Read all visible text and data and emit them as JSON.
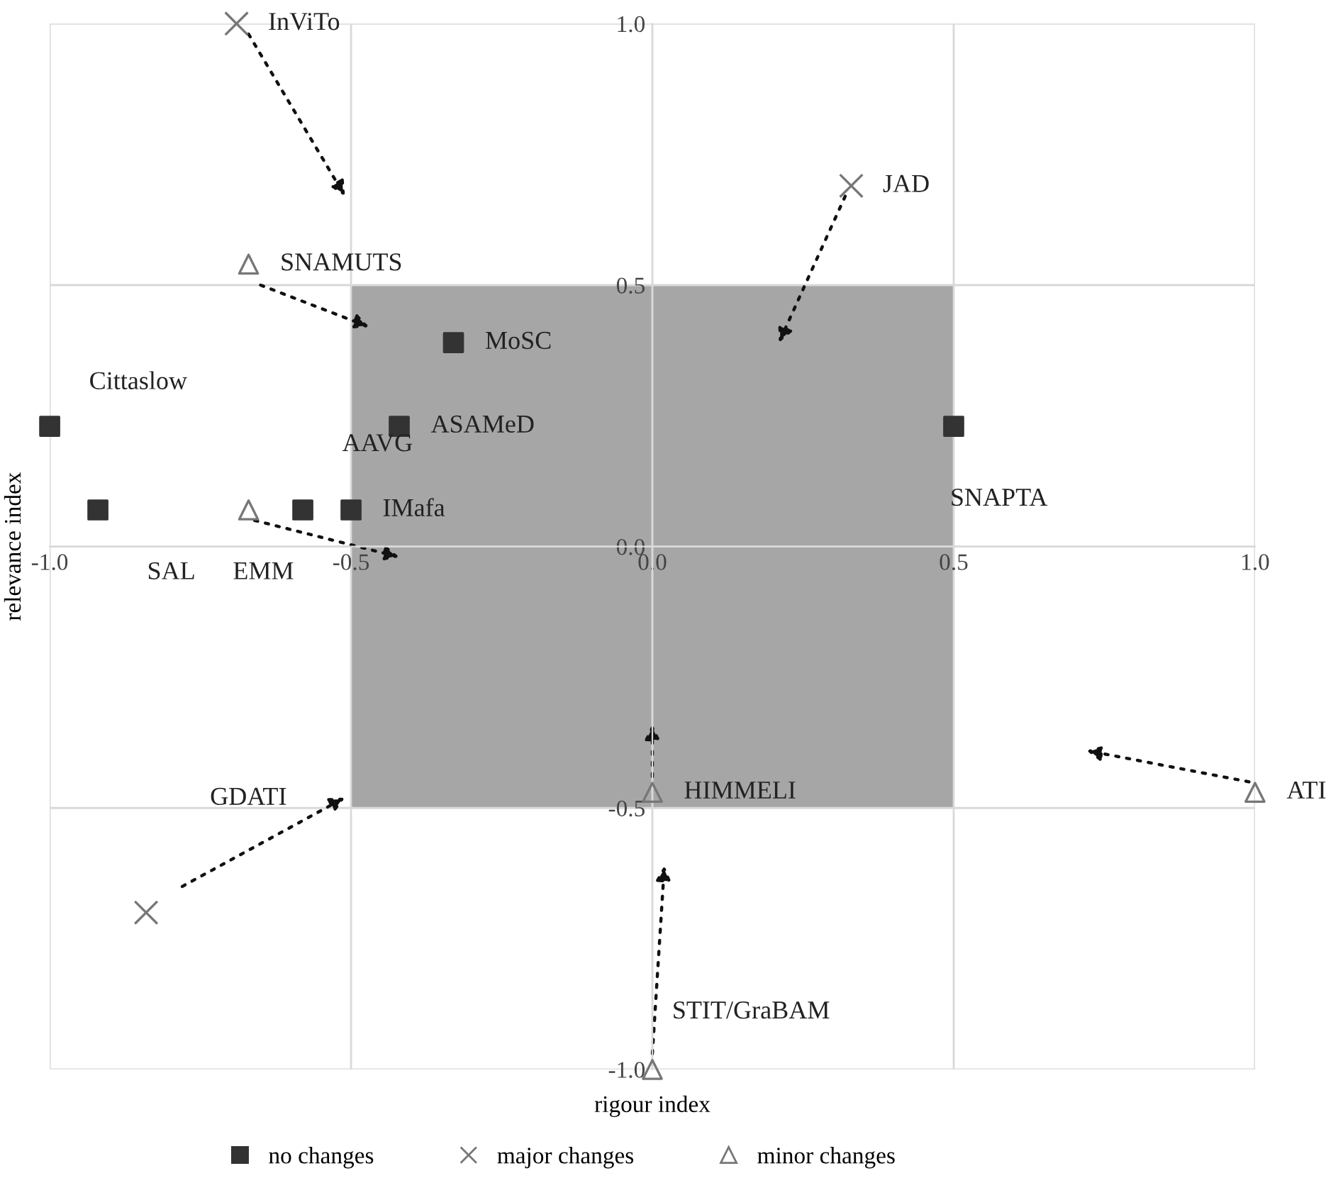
{
  "chart_data": {
    "type": "scatter",
    "xlabel": "rigour index",
    "ylabel": "relevance index",
    "xlim": [
      -1.0,
      1.0
    ],
    "ylim": [
      -1.0,
      1.0
    ],
    "xticks": [
      {
        "value": -1.0,
        "label": "-1.0"
      },
      {
        "value": -0.5,
        "label": "-0.5"
      },
      {
        "value": 0.0,
        "label": "0.0"
      },
      {
        "value": 0.5,
        "label": "0.5"
      },
      {
        "value": 1.0,
        "label": "1.0"
      }
    ],
    "yticks": [
      {
        "value": -1.0,
        "label": "-1.0"
      },
      {
        "value": -0.5,
        "label": "-0.5"
      },
      {
        "value": 0.0,
        "label": "0.0"
      },
      {
        "value": 0.5,
        "label": "0.5"
      },
      {
        "value": 1.0,
        "label": "1.0"
      }
    ],
    "grid": true,
    "legend": "bottom",
    "series": [
      {
        "type": "area",
        "color": "#a6a6a6",
        "x": [
          -0.5,
          0.5
        ],
        "values": [
          0.5,
          0.5
        ]
      },
      {
        "type": "area",
        "color": "#a6a6a6",
        "x": [
          -0.5,
          0.5
        ],
        "values": [
          -0.5,
          -0.5
        ]
      },
      {
        "name": "no changes",
        "marker": "square",
        "color": "#333333",
        "x": [
          -1.0,
          -0.92,
          -0.58,
          -0.5,
          -0.42,
          -0.33,
          0.5
        ],
        "values": [
          0.23,
          0.07,
          0.07,
          0.07,
          0.23,
          0.39,
          0.23
        ]
      },
      {
        "name": "major changes",
        "marker": "cross",
        "color": "#777777",
        "x": [
          -0.69,
          0.33,
          -0.84
        ],
        "values": [
          1.0,
          0.69,
          -0.7
        ]
      },
      {
        "name": "minor changes",
        "marker": "triangle",
        "color": "#777777",
        "x": [
          -0.67,
          -0.67,
          0.0,
          0.0,
          1.0
        ],
        "values": [
          0.54,
          0.07,
          -0.47,
          -1.0,
          -0.47
        ]
      }
    ],
    "annotations": [
      {
        "text": "InViTo",
        "x": -0.69,
        "y": 1.0
      },
      {
        "text": "JAD",
        "x": 0.33,
        "y": 0.69
      },
      {
        "text": "SNAMUTS",
        "x": -0.67,
        "y": 0.54
      },
      {
        "text": "MoSC",
        "x": -0.33,
        "y": 0.39
      },
      {
        "text": "Cittaslow",
        "x": -1.0,
        "y": 0.23
      },
      {
        "text": "ASAMeD",
        "x": -0.42,
        "y": 0.23
      },
      {
        "text": "AAVG",
        "x": -0.58,
        "y": 0.07
      },
      {
        "text": "IMafa",
        "x": -0.5,
        "y": 0.07
      },
      "SNAPTA",
      {
        "text": "SAL",
        "x": -0.92,
        "y": 0.07
      },
      {
        "text": "EMM",
        "x": -0.67,
        "y": 0.07
      },
      "GDATI",
      {
        "text": "HIMMELI",
        "x": 0.0,
        "y": -0.47
      },
      {
        "text": "STIT/GraBAM",
        "x": 0.0,
        "y": -1.0
      },
      {
        "text": "ATI",
        "x": 1.0,
        "y": -0.47
      }
    ]
  }
}
